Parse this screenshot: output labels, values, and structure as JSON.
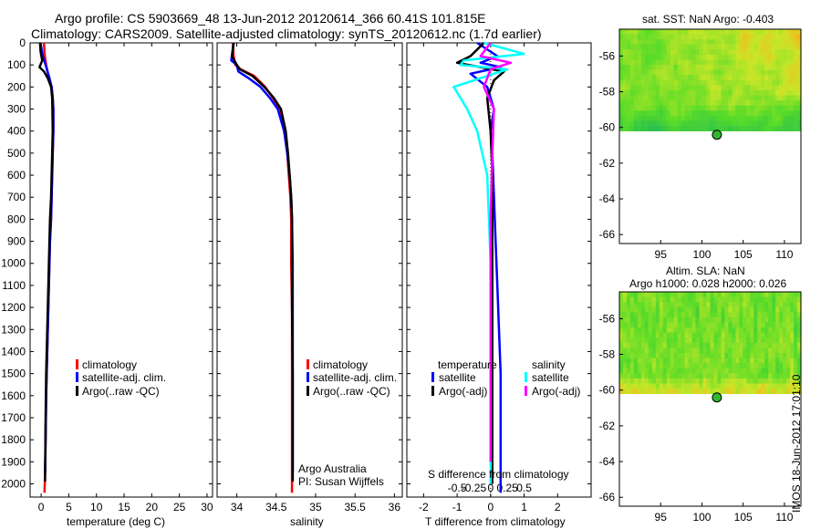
{
  "titles": {
    "line1": "Argo profile: CS 5903669_48 13-Jun-2012 20120614_366 60.41S 101.815E",
    "line2": "Climatology: CARS2009. Satellite-adjusted climatology: synTS_20120612.nc (1.7d earlier)"
  },
  "colors": {
    "climatology": "#ff0000",
    "satellite": "#0000ff",
    "argo": "#000000",
    "sal_satellite": "#00ffff",
    "sal_argo": "#ff00ff"
  },
  "depth_ticks": [
    "0",
    "100",
    "200",
    "300",
    "400",
    "500",
    "600",
    "700",
    "800",
    "900",
    "1000",
    "1100",
    "1200",
    "1300",
    "1400",
    "1500",
    "1600",
    "1700",
    "1800",
    "1900",
    "2000"
  ],
  "chart_data": [
    {
      "type": "line",
      "panel": "temperature",
      "xlabel": "temperature (deg C)",
      "xlim": [
        -2,
        31
      ],
      "ylim": [
        2060,
        0
      ],
      "xticks": [
        "0",
        "5",
        "10",
        "15",
        "20",
        "25",
        "30"
      ],
      "legend": [
        "climatology",
        "satellite-adj. clim.",
        "Argo(..raw -QC)"
      ],
      "series": [
        {
          "name": "climatology",
          "color": "#ff0000",
          "x": [
            0.5,
            0.6,
            0.9,
            1.3,
            1.9,
            2.1,
            2.2,
            2.2,
            2.1,
            2.0,
            1.9,
            1.8,
            1.6,
            1.5,
            1.4,
            1.3,
            1.2,
            1.1,
            1.0,
            0.9,
            0.8,
            0.7,
            0.6
          ],
          "y": [
            0,
            50,
            100,
            150,
            200,
            250,
            300,
            400,
            500,
            600,
            700,
            800,
            900,
            1000,
            1100,
            1200,
            1300,
            1400,
            1500,
            1600,
            1800,
            1950,
            2040
          ]
        },
        {
          "name": "satellite-adj. clim.",
          "color": "#0000ff",
          "x": [
            -0.1,
            0.2,
            0.8,
            1.4,
            1.9,
            2.1,
            2.2,
            2.2,
            2.1,
            2.0,
            1.9,
            1.8,
            1.6,
            1.5,
            1.4,
            1.3,
            1.2,
            1.1,
            1.0,
            0.9,
            0.8,
            0.7
          ],
          "y": [
            0,
            50,
            100,
            150,
            200,
            250,
            300,
            400,
            500,
            600,
            700,
            800,
            900,
            1000,
            1100,
            1200,
            1300,
            1400,
            1500,
            1600,
            1800,
            1950
          ]
        },
        {
          "name": "Argo(..raw -QC)",
          "color": "#000000",
          "x": [
            -0.2,
            -0.1,
            0.2,
            -0.3,
            0.5,
            1.2,
            1.8,
            2.0,
            2.1,
            2.0,
            1.9,
            1.8,
            1.6,
            1.5,
            1.4,
            1.3,
            1.2,
            1.1,
            1.0,
            0.9,
            0.8,
            0.7
          ],
          "y": [
            0,
            40,
            80,
            110,
            130,
            160,
            200,
            250,
            400,
            500,
            600,
            700,
            800,
            900,
            1000,
            1100,
            1200,
            1300,
            1400,
            1500,
            1700,
            1990
          ]
        }
      ]
    },
    {
      "type": "line",
      "panel": "salinity",
      "xlabel": "salinity",
      "xlim": [
        33.75,
        36.1
      ],
      "ylim": [
        2060,
        0
      ],
      "xticks": [
        "34",
        "34.5",
        "35",
        "35.5",
        "36"
      ],
      "legend": [
        "climatology",
        "satellite-adj. clim.",
        "Argo(..raw -QC)"
      ],
      "annotation": [
        "Argo Australia",
        "PI: Susan Wijffels"
      ],
      "series": [
        {
          "name": "climatology",
          "color": "#ff0000",
          "x": [
            33.95,
            33.96,
            33.98,
            34.05,
            34.22,
            34.36,
            34.46,
            34.55,
            34.61,
            34.64,
            34.66,
            34.68,
            34.69,
            34.69,
            34.7,
            34.7,
            34.7,
            34.7,
            34.7,
            34.7
          ],
          "y": [
            0,
            60,
            100,
            120,
            150,
            200,
            250,
            300,
            400,
            500,
            600,
            700,
            800,
            1000,
            1200,
            1400,
            1600,
            1800,
            1950,
            2040
          ]
        },
        {
          "name": "satellite-adj. clim.",
          "color": "#0000ff",
          "x": [
            33.96,
            33.93,
            34.0,
            34.02,
            34.15,
            34.3,
            34.42,
            34.52,
            34.6,
            34.64,
            34.67,
            34.69,
            34.7,
            34.71,
            34.71,
            34.71,
            34.71,
            34.71,
            34.71
          ],
          "y": [
            0,
            80,
            100,
            130,
            160,
            200,
            250,
            300,
            400,
            500,
            600,
            700,
            800,
            1000,
            1200,
            1400,
            1600,
            1800,
            1950
          ]
        },
        {
          "name": "Argo(..raw -QC)",
          "color": "#000000",
          "x": [
            33.96,
            33.94,
            34.0,
            34.04,
            34.2,
            34.35,
            34.47,
            34.56,
            34.62,
            34.65,
            34.67,
            34.69,
            34.7,
            34.7,
            34.7,
            34.71,
            34.71
          ],
          "y": [
            0,
            60,
            100,
            120,
            150,
            200,
            250,
            300,
            400,
            500,
            600,
            700,
            800,
            1000,
            1200,
            1500,
            1990
          ]
        }
      ]
    },
    {
      "type": "line",
      "panel": "difference",
      "xlabel": "T difference from climatology",
      "xlabel2": "S difference from climatology",
      "xlim": [
        -2.5,
        3.0
      ],
      "ylim": [
        2060,
        0
      ],
      "xticks": [
        "-2",
        "-1",
        "0",
        "1",
        "2"
      ],
      "xticks2": [
        "-0.5",
        "-0.25",
        "0",
        "0.25",
        "0.5"
      ],
      "legend_headers": [
        "temperature",
        "salinity"
      ],
      "legend": [
        "satellite",
        "Argo(-adj)",
        "satellite",
        "Argo(-adj)"
      ],
      "series": [
        {
          "name": "temperature satellite",
          "color": "#0000ff",
          "x": [
            -0.4,
            0.2,
            -0.3,
            0.3,
            -0.6,
            -0.1,
            0.1,
            0.0,
            0.05,
            0.1,
            0.15,
            0.2,
            0.25,
            0.3,
            0.3,
            0.3,
            0.3,
            0.3
          ],
          "y": [
            0,
            60,
            90,
            110,
            140,
            200,
            300,
            400,
            500,
            700,
            900,
            1100,
            1300,
            1500,
            1700,
            1900,
            2000,
            2040
          ]
        },
        {
          "name": "temperature Argo(-adj)",
          "color": "#000000",
          "x": [
            -0.2,
            -0.6,
            -1.0,
            -0.3,
            0.4,
            0.1,
            -0.1,
            0.0,
            0.05,
            0.05,
            0.05,
            0.05,
            0.05,
            0.05,
            0.05,
            0.05,
            0.05
          ],
          "y": [
            0,
            60,
            90,
            110,
            130,
            170,
            250,
            400,
            600,
            800,
            1000,
            1200,
            1400,
            1600,
            1800,
            1950,
            2000
          ]
        },
        {
          "name": "salinity satellite",
          "color": "#00ffff",
          "x": [
            -0.2,
            1.0,
            -0.8,
            -0.9,
            0.5,
            -1.1,
            -0.7,
            -0.4,
            -0.1,
            -0.05,
            0.0,
            0.0,
            0.0,
            0.0,
            0.0
          ],
          "y": [
            0,
            50,
            80,
            100,
            120,
            200,
            300,
            400,
            600,
            800,
            1000,
            1200,
            1500,
            1800,
            2000
          ]
        },
        {
          "name": "salinity Argo(-adj)",
          "color": "#ff00ff",
          "x": [
            0.0,
            -0.3,
            0.6,
            0.0,
            -0.2,
            0.1,
            0.05,
            0.0,
            0.0,
            0.0,
            0.0,
            0.0
          ],
          "y": [
            0,
            60,
            90,
            120,
            200,
            300,
            500,
            800,
            1000,
            1300,
            1600,
            1900
          ]
        }
      ]
    },
    {
      "type": "heatmap",
      "panel": "sst_map",
      "title": "sat. SST: NaN Argo: -0.403",
      "xlim": [
        90,
        112
      ],
      "ylim": [
        -66.5,
        -54.5
      ],
      "xticks": [
        "95",
        "100",
        "105",
        "110"
      ],
      "yticks": [
        "-56",
        "-58",
        "-60",
        "-62",
        "-64",
        "-66"
      ],
      "data_extent_lat": [
        -60.2,
        -54.5
      ],
      "marker": {
        "lon": 101.815,
        "lat": -60.41
      }
    },
    {
      "type": "heatmap",
      "panel": "sla_map",
      "title": "Altim. SLA: NaN",
      "subtitle": "Argo h1000: 0.028 h2000: 0.026",
      "xlim": [
        90,
        112
      ],
      "ylim": [
        -66.5,
        -54.5
      ],
      "xticks": [
        "95",
        "100",
        "105",
        "110"
      ],
      "yticks": [
        "-56",
        "-58",
        "-60",
        "-62",
        "-64",
        "-66"
      ],
      "data_extent_lat": [
        -60.2,
        -54.5
      ],
      "marker": {
        "lon": 101.815,
        "lat": -60.41
      }
    }
  ],
  "stamp": "IMOS 18-Jun-2012 17:01:10"
}
